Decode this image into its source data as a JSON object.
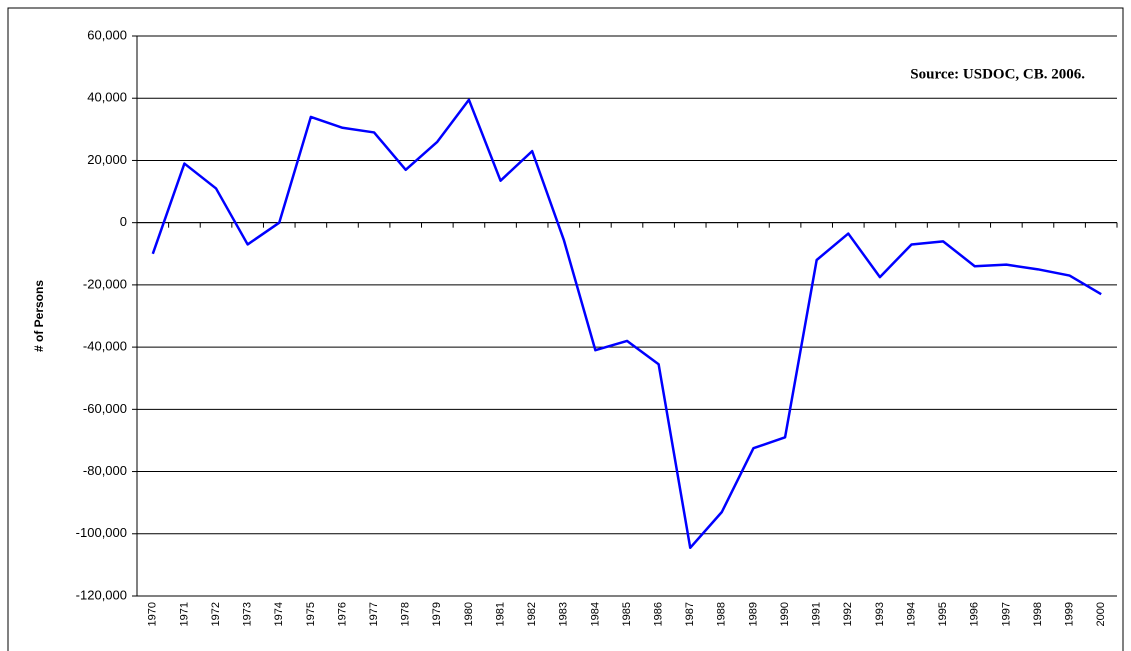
{
  "chart_data": {
    "type": "line",
    "annotation": "Source: USDOC, CB. 2006.",
    "y_label": "# of Persons",
    "categories": [
      "1970",
      "1971",
      "1972",
      "1973",
      "1974",
      "1975",
      "1976",
      "1977",
      "1978",
      "1979",
      "1980",
      "1981",
      "1982",
      "1983",
      "1984",
      "1985",
      "1986",
      "1987",
      "1988",
      "1989",
      "1990",
      "1991",
      "1992",
      "1993",
      "1994",
      "1995",
      "1996",
      "1997",
      "1998",
      "1999",
      "2000"
    ],
    "series": [
      {
        "color": "#0000ff",
        "values": [
          -10000,
          19000,
          11000,
          -7000,
          0,
          34000,
          30500,
          29000,
          17000,
          26000,
          39500,
          13500,
          23000,
          -5500,
          -41000,
          -38000,
          -45500,
          -104500,
          -93000,
          -72500,
          -69000,
          -12000,
          -3500,
          -17500,
          -7000,
          -6000,
          -14000,
          -13500,
          -15000,
          -17000,
          -23000
        ]
      }
    ],
    "ylim": [
      -120000,
      60000
    ],
    "yticks": [
      {
        "value": -120000,
        "label": "-120,000"
      },
      {
        "value": -100000,
        "label": "-100,000"
      },
      {
        "value": -80000,
        "label": "-80,000"
      },
      {
        "value": -60000,
        "label": "-60,000"
      },
      {
        "value": -40000,
        "label": "-40,000"
      },
      {
        "value": -20000,
        "label": "-20,000"
      },
      0,
      {
        "value": 20000,
        "label": "20,000"
      },
      {
        "value": 40000,
        "label": "40,000"
      },
      {
        "value": 60000,
        "label": "60,000"
      }
    ],
    "grid": true
  }
}
